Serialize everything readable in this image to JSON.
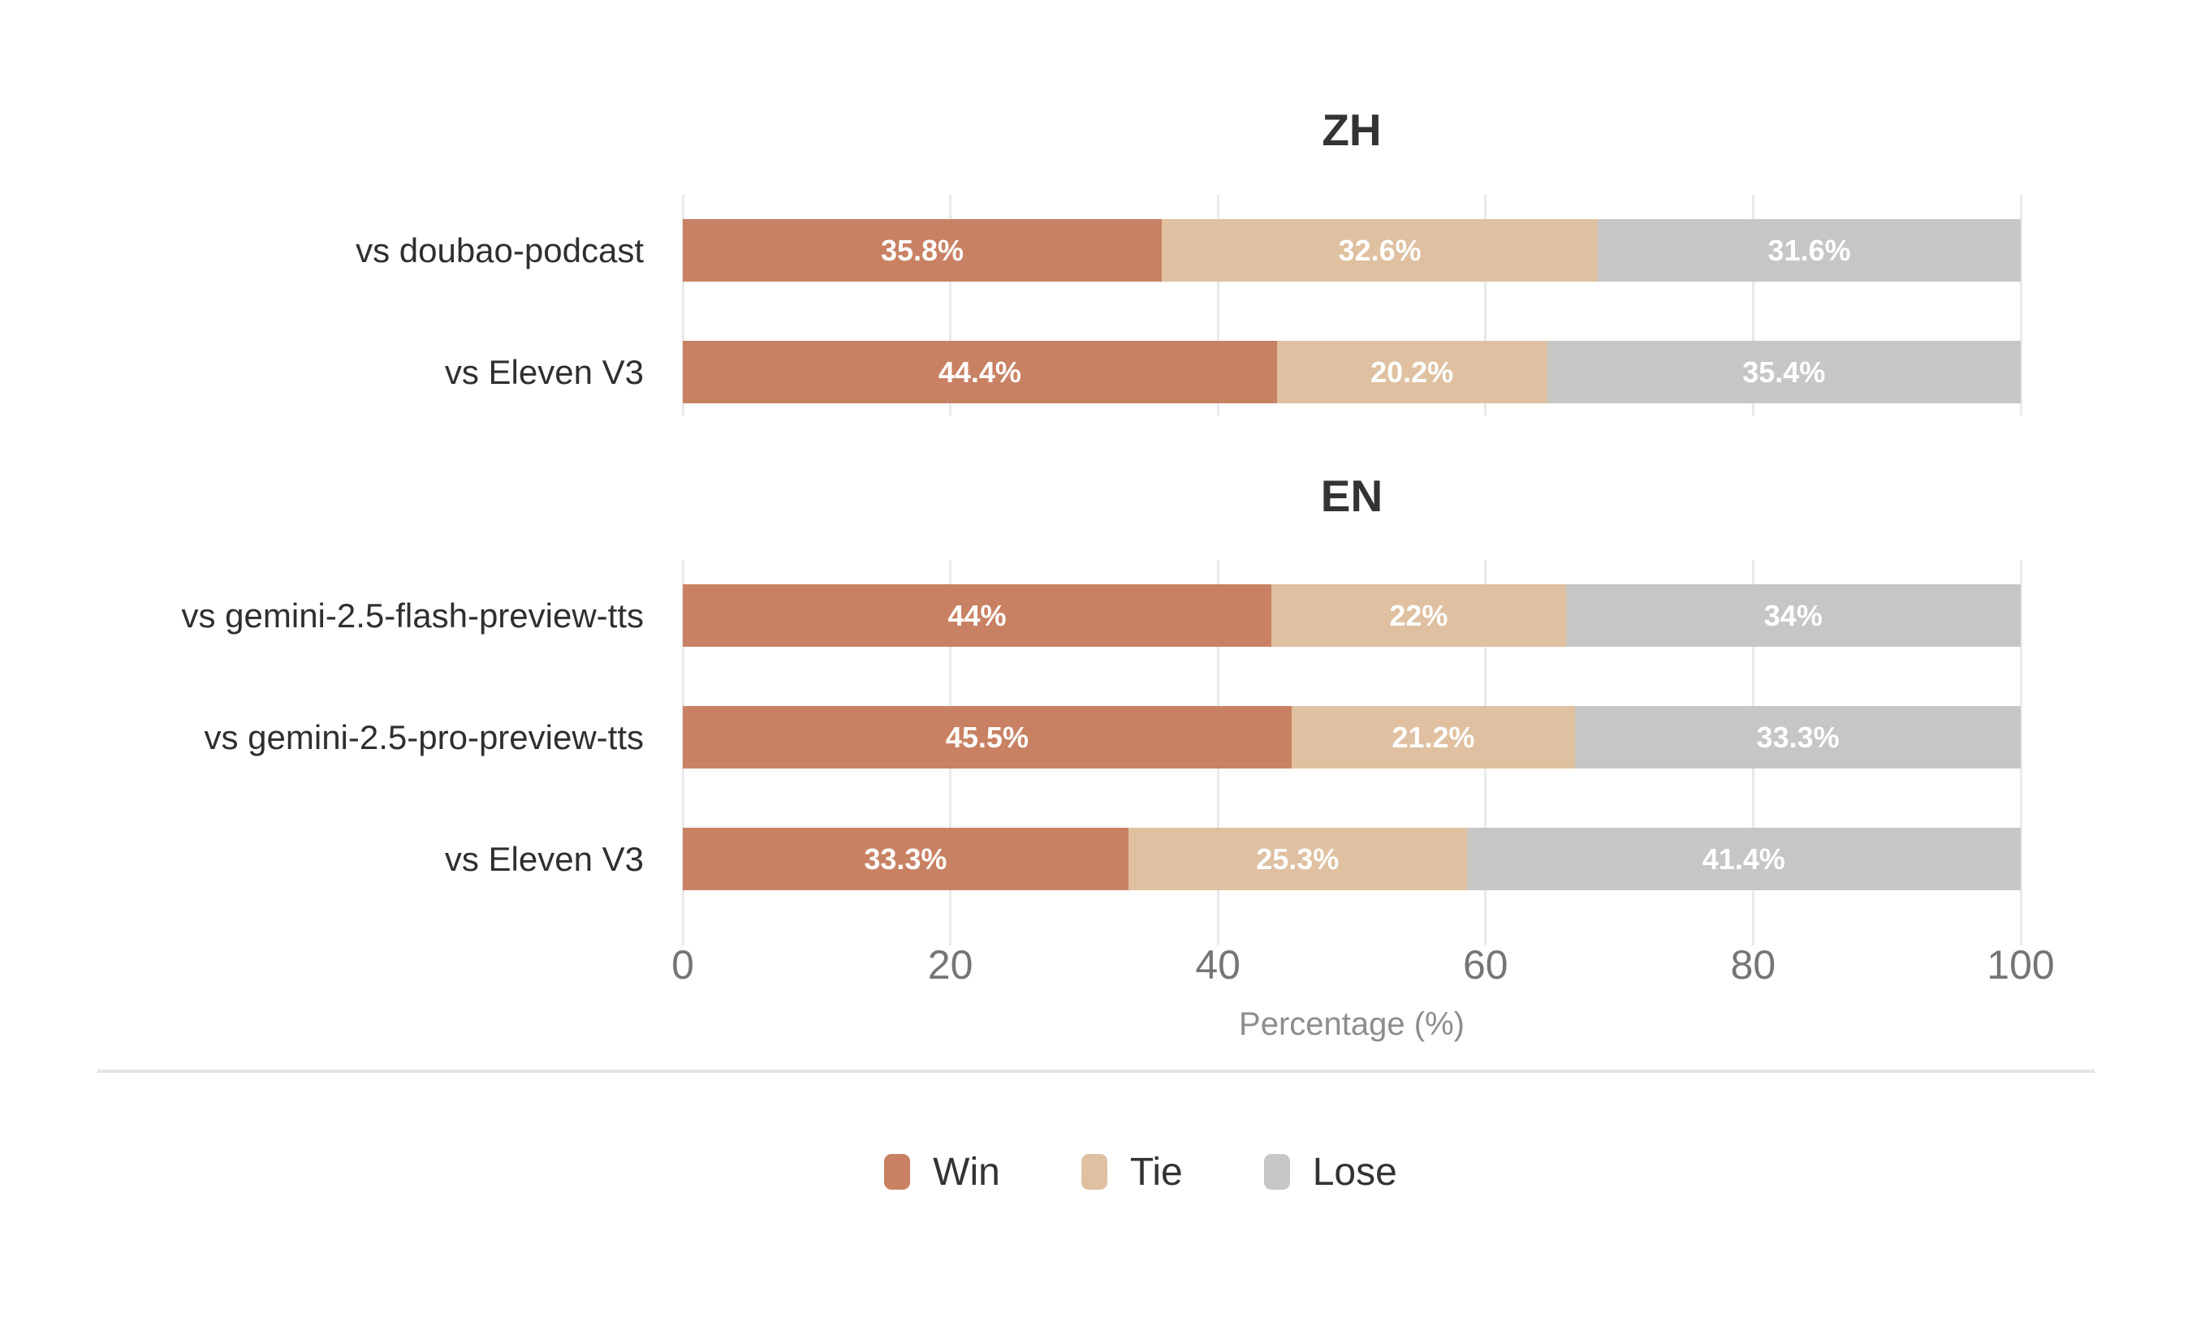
{
  "page": {
    "background": "#ffffff"
  },
  "chart_data": {
    "type": "bar",
    "orientation": "horizontal",
    "stacked": true,
    "unit": "%",
    "xlabel": "Percentage (%)",
    "x_ticks": [
      "0",
      "20",
      "40",
      "60",
      "80",
      "100"
    ],
    "xlim": [
      0,
      100
    ],
    "grid": "vertical-lines",
    "legend_position": "bottom-center",
    "legend": [
      {
        "label": "Win",
        "color": "#c98163"
      },
      {
        "label": "Tie",
        "color": "#dfc0a0"
      },
      {
        "label": "Lose",
        "color": "#c7c6c4"
      }
    ],
    "groups": [
      {
        "title": "ZH",
        "rows": [
          {
            "category": "vs doubao-podcast",
            "win": 35.8,
            "tie": 32.6,
            "lose": 31.6,
            "labels": [
              "35.8%",
              "32.6%",
              "31.6%"
            ]
          },
          {
            "category": "vs Eleven V3",
            "win": 44.4,
            "tie": 20.2,
            "lose": 35.4,
            "labels": [
              "44.4%",
              "20.2%",
              "35.4%"
            ]
          }
        ]
      },
      {
        "title": "EN",
        "rows": [
          {
            "category": "vs gemini-2.5-flash-preview-tts",
            "win": 44.0,
            "tie": 22.0,
            "lose": 34.0,
            "labels": [
              "44%",
              "22%",
              "34%"
            ]
          },
          {
            "category": "vs gemini-2.5-pro-preview-tts",
            "win": 45.5,
            "tie": 21.2,
            "lose": 33.3,
            "labels": [
              "45.5%",
              "21.2%",
              "33.3%"
            ]
          },
          {
            "category": "vs Eleven V3",
            "win": 33.3,
            "tie": 25.3,
            "lose": 41.4,
            "labels": [
              "33.3%",
              "25.3%",
              "41.4%"
            ]
          }
        ]
      }
    ]
  }
}
